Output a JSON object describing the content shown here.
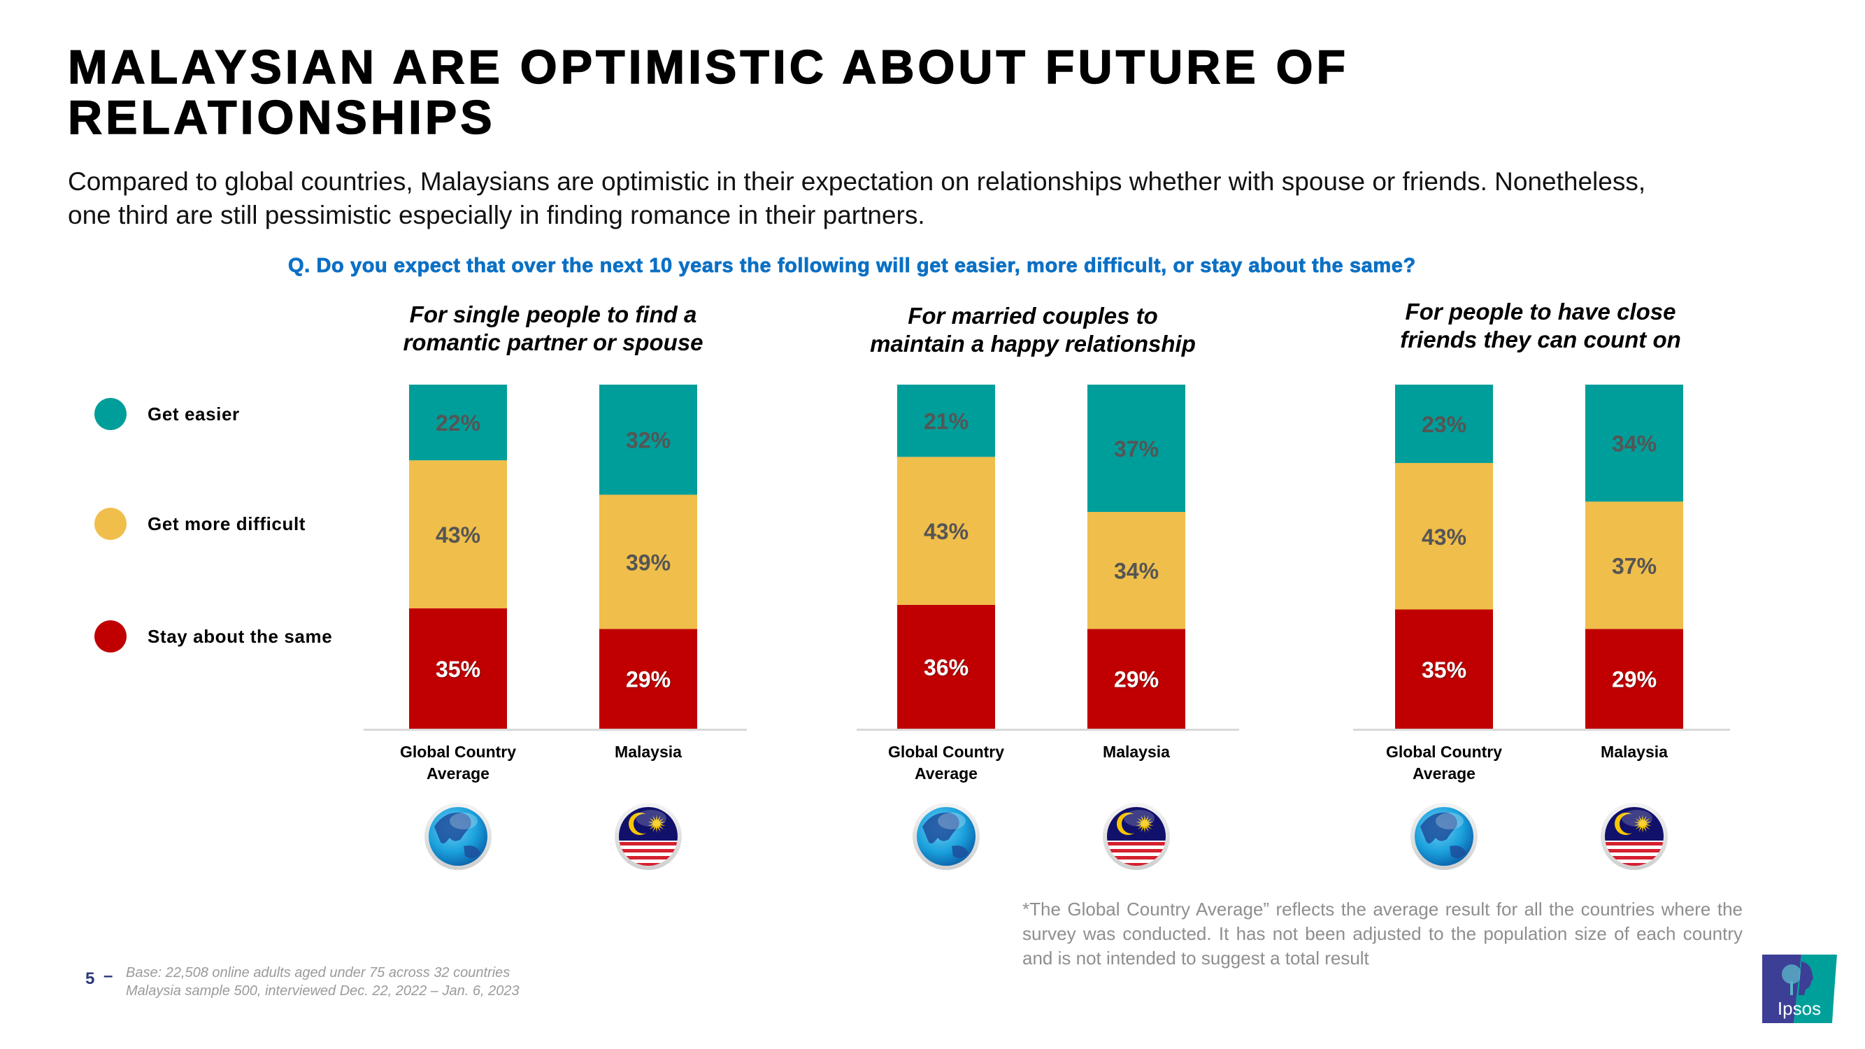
{
  "header": {
    "title_lines": [
      "MALAYSIAN ARE OPTIMISTIC ABOUT FUTURE OF",
      "RELATIONSHIPS"
    ],
    "subtitle_lines": [
      "Compared to global countries, Malaysians are optimistic in their expectation on relationships whether with spouse or friends. Nonetheless,",
      "one third are still pessimistic especially in finding romance in their partners."
    ],
    "question": "Q. Do you expect that over the next 10 years the following will get easier, more difficult, or stay about the same?"
  },
  "legend": [
    {
      "label": "Get easier",
      "color": "#009e9a"
    },
    {
      "label": "Get more difficult",
      "color": "#f0be4a"
    },
    {
      "label": "Stay about the same",
      "color": "#c00000"
    }
  ],
  "chart_data": [
    {
      "type": "bar",
      "stacked": true,
      "title": "For single people to find a romantic partner or spouse",
      "title_lines": [
        "For single people to find a",
        "romantic partner or spouse"
      ],
      "categories": [
        "Global Country Average",
        "Malaysia"
      ],
      "category_lines": [
        [
          "Global Country",
          "Average"
        ],
        [
          "Malaysia"
        ]
      ],
      "category_icons": [
        "globe-icon",
        "malaysia-flag-icon"
      ],
      "series": [
        {
          "name": "Stay about the same",
          "values": [
            35,
            29
          ]
        },
        {
          "name": "Get more difficult",
          "values": [
            43,
            39
          ]
        },
        {
          "name": "Get easier",
          "values": [
            22,
            32
          ]
        }
      ],
      "ylim": [
        0,
        100
      ],
      "xlabel": "",
      "ylabel": "",
      "grid": false
    },
    {
      "type": "bar",
      "stacked": true,
      "title": "For married couples to maintain a happy relationship",
      "title_lines": [
        "For married couples to",
        "maintain a happy relationship"
      ],
      "categories": [
        "Global Country Average",
        "Malaysia"
      ],
      "category_lines": [
        [
          "Global Country",
          "Average"
        ],
        [
          "Malaysia"
        ]
      ],
      "category_icons": [
        "globe-icon",
        "malaysia-flag-icon"
      ],
      "series": [
        {
          "name": "Stay about the same",
          "values": [
            36,
            29
          ]
        },
        {
          "name": "Get more difficult",
          "values": [
            43,
            34
          ]
        },
        {
          "name": "Get easier",
          "values": [
            21,
            37
          ]
        }
      ],
      "ylim": [
        0,
        100
      ],
      "xlabel": "",
      "ylabel": "",
      "grid": false
    },
    {
      "type": "bar",
      "stacked": true,
      "title": "For people to have close friends they can count on",
      "title_lines": [
        "For people to have close",
        "friends they can count on"
      ],
      "categories": [
        "Global Country Average",
        "Malaysia"
      ],
      "category_lines": [
        [
          "Global Country",
          "Average"
        ],
        [
          "Malaysia"
        ]
      ],
      "category_icons": [
        "globe-icon",
        "malaysia-flag-icon"
      ],
      "series": [
        {
          "name": "Stay about the same",
          "values": [
            35,
            29
          ]
        },
        {
          "name": "Get more difficult",
          "values": [
            43,
            37
          ]
        },
        {
          "name": "Get easier",
          "values": [
            23,
            34
          ]
        }
      ],
      "ylim": [
        0,
        100
      ],
      "xlabel": "",
      "ylabel": "",
      "grid": false
    }
  ],
  "footnote": "*The Global Country Average” reflects the average result for all the countries where the survey was conducted. It has not been adjusted to the population size of each country and is not intended to suggest a total result",
  "footer": {
    "page_number": "5",
    "page_separator": "–",
    "base_lines": [
      "Base: 22,508 online adults aged under 75 across 32 countries",
      "Malaysia sample 500, interviewed Dec. 22, 2022 – Jan. 6, 2023"
    ]
  },
  "logo": {
    "text": "Ipsos",
    "colors": {
      "left": "#3d3e96",
      "right": "#00a09a"
    }
  },
  "colors": {
    "label_dark": "#555555",
    "label_light": "#ffffff",
    "axis": "#d9d9d9",
    "question": "#0b70c4"
  }
}
